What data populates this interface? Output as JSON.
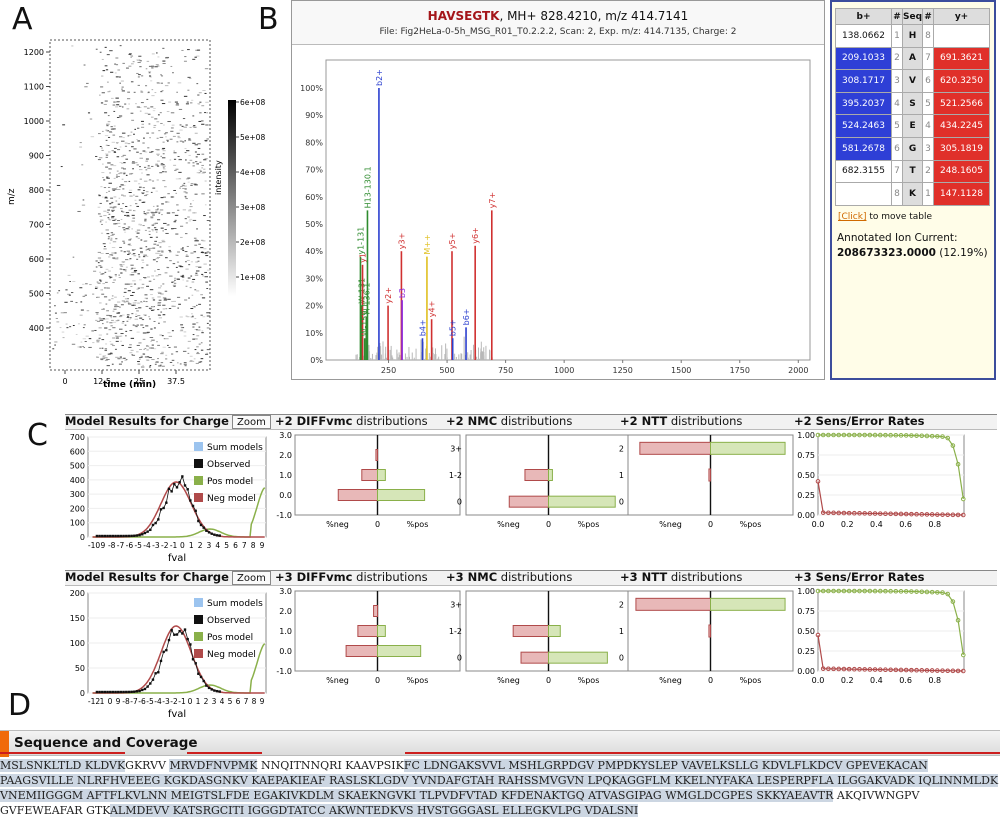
{
  "panel_labels": {
    "a": "A",
    "b": "B",
    "c": "C",
    "d": "D"
  },
  "panel_a": {
    "ylabel": "m/z",
    "xlabel": "time (min)",
    "colorbar_label": "intensity",
    "y_ticks": [
      "1200",
      "1100",
      "1000",
      "900",
      "800",
      "700",
      "600",
      "500",
      "400"
    ],
    "x_ticks": [
      "0",
      "12.5",
      "25",
      "37.5"
    ],
    "cb_ticks": [
      "6e+08",
      "5e+08",
      "4e+08",
      "3e+08",
      "2e+08",
      "1e+08"
    ]
  },
  "panel_b": {
    "peptide": "HAVSEGTK",
    "title_rest": ", MH+ 828.4210, m/z 414.7141",
    "file_line": "File: Fig2HeLa-0-5h_MSG_R01_T0.2.2.2, Scan: 2, Exp. m/z: 414.7135, Charge: 2",
    "chart_data": {
      "type": "bar",
      "y_ticks": [
        "100%",
        "90%",
        "80%",
        "70%",
        "60%",
        "50%",
        "40%",
        "30%",
        "20%",
        "10%",
        "0%"
      ],
      "x_ticks": [
        "250",
        "500",
        "750",
        "1000",
        "1250",
        "1500",
        "1750",
        "2000"
      ],
      "xlim": [
        0,
        2050
      ],
      "ylim": [
        0,
        100
      ],
      "peaks": [
        {
          "mz": 130,
          "rel": 38,
          "color": "#2e8b2e",
          "label": "y1-131"
        },
        {
          "mz": 134,
          "rel": 20,
          "color": "#2e8b2e",
          "label": "W-131"
        },
        {
          "mz": 139,
          "rel": 35,
          "color": "#d03030",
          "label": "y1"
        },
        {
          "mz": 148,
          "rel": 8,
          "color": "#2e8b2e",
          "label": "W-159.1"
        },
        {
          "mz": 155,
          "rel": 16,
          "color": "#2e8b2e",
          "label": "H-136.1"
        },
        {
          "mz": 160,
          "rel": 55,
          "color": "#2e8b2e",
          "label": "H13-130.1"
        },
        {
          "mz": 209,
          "rel": 100,
          "color": "#2b3fcf",
          "label": "b2+"
        },
        {
          "mz": 248,
          "rel": 20,
          "color": "#d03030",
          "label": "y2+"
        },
        {
          "mz": 305,
          "rel": 40,
          "color": "#d03030",
          "label": "y3+"
        },
        {
          "mz": 308,
          "rel": 22,
          "color": "#8a2be2",
          "label": "b3"
        },
        {
          "mz": 395,
          "rel": 8,
          "color": "#2b3fcf",
          "label": "b4+"
        },
        {
          "mz": 414,
          "rel": 38,
          "color": "#e0c020",
          "label": "M++"
        },
        {
          "mz": 434,
          "rel": 15,
          "color": "#d03030",
          "label": "y4+"
        },
        {
          "mz": 521,
          "rel": 40,
          "color": "#d03030",
          "label": "y5+"
        },
        {
          "mz": 524,
          "rel": 8,
          "color": "#2b3fcf",
          "label": "b5+"
        },
        {
          "mz": 581,
          "rel": 12,
          "color": "#2b3fcf",
          "label": "b6+"
        },
        {
          "mz": 620,
          "rel": 42,
          "color": "#d03030",
          "label": "y6+"
        },
        {
          "mz": 691,
          "rel": 55,
          "color": "#d03030",
          "label": "y7+"
        }
      ]
    },
    "ion_table": {
      "headers": [
        "b+",
        "#",
        "Seq",
        "#",
        "y+"
      ],
      "rows": [
        {
          "b": "138.0662",
          "i": "1",
          "aa": "H",
          "j": "8",
          "y": "",
          "bhit": false,
          "yhit": false
        },
        {
          "b": "209.1033",
          "i": "2",
          "aa": "A",
          "j": "7",
          "y": "691.3621",
          "bhit": true,
          "yhit": true
        },
        {
          "b": "308.1717",
          "i": "3",
          "aa": "V",
          "j": "6",
          "y": "620.3250",
          "bhit": true,
          "yhit": true
        },
        {
          "b": "395.2037",
          "i": "4",
          "aa": "S",
          "j": "5",
          "y": "521.2566",
          "bhit": true,
          "yhit": true
        },
        {
          "b": "524.2463",
          "i": "5",
          "aa": "E",
          "j": "4",
          "y": "434.2245",
          "bhit": true,
          "yhit": true
        },
        {
          "b": "581.2678",
          "i": "6",
          "aa": "G",
          "j": "3",
          "y": "305.1819",
          "bhit": true,
          "yhit": true
        },
        {
          "b": "682.3155",
          "i": "7",
          "aa": "T",
          "j": "2",
          "y": "248.1605",
          "bhit": false,
          "yhit": true
        },
        {
          "b": "",
          "i": "8",
          "aa": "K",
          "j": "1",
          "y": "147.1128",
          "bhit": false,
          "yhit": true
        }
      ]
    },
    "move_link": "[Click]",
    "move_text": " to move table",
    "aic_label": "Annotated Ion Current:",
    "aic_value": "208673323.0000",
    "aic_pct": " (12.19%)"
  },
  "panel_c": {
    "rows": [
      {
        "title_pre": "Model Results for Charge ",
        "charge": "+2",
        "zoom": "Zoom",
        "diff": "+2 DIFFvmc",
        "nmc": "+2 NMC",
        "ntt": "+2 NTT",
        "sens": "+2 Sens/Error Rates",
        "dist": "distributions",
        "model_y_ticks": [
          "700",
          "600",
          "500",
          "400",
          "300",
          "200",
          "100",
          "0"
        ],
        "model_x_ticks": [
          "-10",
          "9",
          "-8",
          "-7",
          "-6",
          "-5",
          "-4",
          "-3",
          "-2",
          "-1",
          "0",
          "1",
          "2",
          "3",
          "4",
          "5",
          "6",
          "7",
          "8",
          "9"
        ],
        "diff_ticks": [
          "3.0",
          "2.0",
          "1.0",
          "0.0",
          "-1.0"
        ],
        "chart_data": {
          "type": "bar",
          "diff": {
            "categories": [
              "2.0",
              "1.0",
              "0.0"
            ],
            "neg": [
              0.02,
              0.2,
              0.5
            ],
            "pos": [
              0.0,
              0.1,
              0.6
            ]
          },
          "nmc": {
            "categories": [
              "3+",
              "1-2",
              "0"
            ],
            "neg": [
              0.0,
              0.3,
              0.5
            ],
            "pos": [
              0.0,
              0.05,
              0.85
            ]
          },
          "ntt": {
            "categories": [
              "2",
              "1",
              "0"
            ],
            "neg": [
              0.9,
              0.02,
              0.0
            ],
            "pos": [
              0.95,
              0.0,
              0.0
            ]
          }
        }
      },
      {
        "title_pre": "Model Results for Charge ",
        "charge": "+3",
        "zoom": "Zoom",
        "diff": "+3 DIFFvmc",
        "nmc": "+3 NMC",
        "ntt": "+3 NTT",
        "sens": "+3 Sens/Error Rates",
        "dist": "distributions",
        "model_y_ticks": [
          "200",
          "150",
          "100",
          "50",
          "0"
        ],
        "model_x_ticks": [
          "-12",
          "1",
          "0",
          "9",
          "-8",
          "-7",
          "-6",
          "-5",
          "-4",
          "-3",
          "-2",
          "-1",
          "0",
          "1",
          "2",
          "3",
          "4",
          "5",
          "6",
          "7",
          "8",
          "9"
        ],
        "diff_ticks": [
          "3.0",
          "2.0",
          "1.0",
          "0.0",
          "-1.0"
        ],
        "chart_data": {
          "type": "bar",
          "diff": {
            "categories": [
              "2.0",
              "1.0",
              "0.0"
            ],
            "neg": [
              0.05,
              0.25,
              0.4
            ],
            "pos": [
              0.0,
              0.1,
              0.55
            ]
          },
          "nmc": {
            "categories": [
              "3+",
              "1-2",
              "0"
            ],
            "neg": [
              0.0,
              0.45,
              0.35
            ],
            "pos": [
              0.0,
              0.15,
              0.75
            ]
          },
          "ntt": {
            "categories": [
              "2",
              "1",
              "0"
            ],
            "neg": [
              0.95,
              0.02,
              0.0
            ],
            "pos": [
              0.95,
              0.0,
              0.0
            ]
          }
        }
      }
    ],
    "legend": [
      "Sum models",
      "Observed",
      "Pos model",
      "Neg model"
    ],
    "fval": "fval",
    "neg_label": "%neg",
    "zero_label": "0",
    "pos_label": "%pos",
    "sens_y_ticks": [
      "1.00",
      "0.75",
      "0.50",
      "0.25",
      "0.00"
    ],
    "sens_x_ticks": [
      "0.0",
      "0.2",
      "0.4",
      "0.6",
      "0.8"
    ]
  },
  "panel_d": {
    "title": "Sequence and Coverage",
    "segments": [
      {
        "t": "MSLSNKLTLD KLDVK",
        "c": true
      },
      {
        "t": "GKRVV ",
        "c": false
      },
      {
        "t": "MRVDFNVPMK",
        "c": true
      },
      {
        "t": " NNQITNNQRI KAAVPSIK",
        "c": false
      },
      {
        "t": "FC LDNGAKSVVL MSHLGRPDGV PMPDKYSLEP VAVELKSLLG KDVLFLKDCV GPEVEKACAN",
        "c": true
      },
      {
        "t": " PAAGSVILLE NLRFHVEEEG KGKDASGNKV KAEPAKIEAF RASLSKLGDV YVNDAFGTAH RAHSSMVGVN LPQKAGGFLM KKELNYFAKA LESPERPFLA ILGGAKVADK IQLINNMLDK VNEMIIGGGM AFTFLKVLNN MEIGTSLFDE EGAKIVKDLM SKAEKNGVKI TLPVDFVTAD KFDENAKTGQ ATVASGIPAG WMGLDCGPES SKKYAEAVTR",
        "c": true
      },
      {
        "t": " AKQIVWNGPV GVFEWEAFAR GTK",
        "c": false
      },
      {
        "t": "ALMDEVV KATSRGCITI IGGGDTATCC AKWNTEDKVS HVSTGGGASL ELLEGKVLPG VDALSNI",
        "c": true
      }
    ]
  }
}
